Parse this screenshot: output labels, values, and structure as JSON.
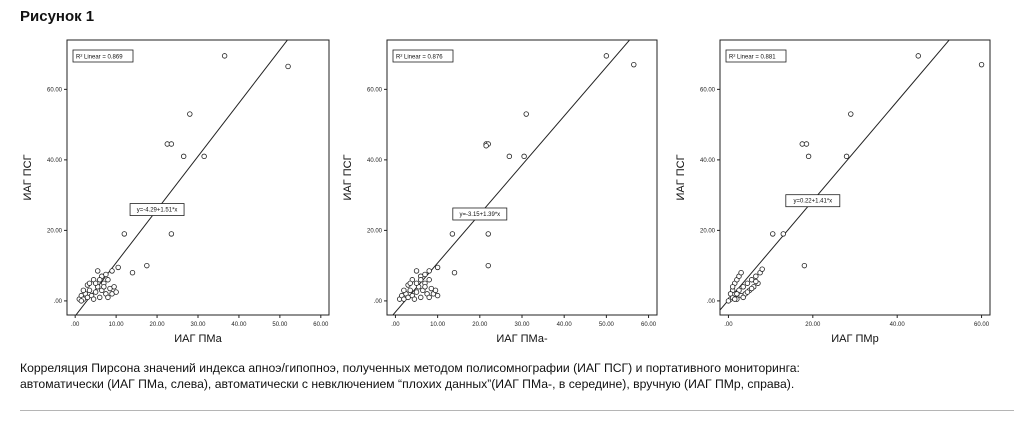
{
  "figure_title": "Рисунок 1",
  "caption_lines": [
    "Корреляция Пирсона значений индекса апноэ/гипопноэ, полученных методом полисомнографии (ИАГ ПСГ) и портативного мониторинга:",
    "автоматически (ИАГ ПМа, слева), автоматически с невключением “плохих данных”(ИАГ ПМа-, в середине), вручную (ИАГ ПМр, справа)."
  ],
  "colors": {
    "axis": "#222222",
    "point": "#222222",
    "line": "#222222"
  },
  "chart_data": [
    {
      "type": "scatter",
      "xlabel": "ИАГ ПМа",
      "ylabel": "ИАГ ПСГ",
      "r2_label": "R² Linear = 0.869",
      "equation": "y=-4.29+1.51*x",
      "intercept": -4.29,
      "slope": 1.51,
      "xlim": [
        -2,
        62
      ],
      "ylim": [
        -4,
        74
      ],
      "x_ticks": [
        ".00",
        "10.00",
        "20.00",
        "30.00",
        "40.00",
        "50.00",
        "60.00"
      ],
      "y_ticks": [
        ".00",
        "20.00",
        "40.00",
        "60.00"
      ],
      "points": [
        [
          36.5,
          69.5
        ],
        [
          52,
          66.5
        ],
        [
          28,
          53
        ],
        [
          22.5,
          44.5
        ],
        [
          23.5,
          44.5
        ],
        [
          31.5,
          41
        ],
        [
          26.5,
          41
        ],
        [
          12,
          19
        ],
        [
          23.5,
          19
        ],
        [
          17.5,
          10
        ],
        [
          10.5,
          9.5
        ],
        [
          14,
          8
        ],
        [
          1,
          0.5
        ],
        [
          1.5,
          1.5
        ],
        [
          2,
          0.5
        ],
        [
          2.5,
          2
        ],
        [
          3,
          1
        ],
        [
          3.5,
          3
        ],
        [
          4,
          1.5
        ],
        [
          4.5,
          0.5
        ],
        [
          5,
          2.5
        ],
        [
          5.5,
          4
        ],
        [
          6,
          1
        ],
        [
          6.5,
          3
        ],
        [
          7,
          5
        ],
        [
          7.5,
          2
        ],
        [
          8,
          6
        ],
        [
          8.5,
          3.5
        ],
        [
          3,
          4.5
        ],
        [
          4.5,
          6
        ],
        [
          5.5,
          8.5
        ],
        [
          6.5,
          7
        ],
        [
          7.5,
          7.5
        ],
        [
          9,
          8.5
        ],
        [
          9,
          2
        ],
        [
          2,
          3
        ],
        [
          3.5,
          5
        ],
        [
          5,
          5
        ],
        [
          6,
          6
        ],
        [
          7,
          4
        ],
        [
          8,
          1
        ],
        [
          9.5,
          4
        ],
        [
          10,
          2.5
        ],
        [
          1.5,
          0
        ]
      ]
    },
    {
      "type": "scatter",
      "xlabel": "ИАГ ПМа-",
      "ylabel": "ИАГ ПСГ",
      "r2_label": "R² Linear = 0.876",
      "equation": "y=-3.15+1.39*x",
      "intercept": -3.15,
      "slope": 1.39,
      "xlim": [
        -2,
        62
      ],
      "ylim": [
        -4,
        74
      ],
      "x_ticks": [
        ".00",
        "10.00",
        "20.00",
        "30.00",
        "40.00",
        "50.00",
        "60.00"
      ],
      "y_ticks": [
        ".00",
        "20.00",
        "40.00",
        "60.00"
      ],
      "points": [
        [
          50,
          69.5
        ],
        [
          56.5,
          67
        ],
        [
          31,
          53
        ],
        [
          21.5,
          44.5
        ],
        [
          22,
          44.5
        ],
        [
          21.5,
          44
        ],
        [
          27,
          41
        ],
        [
          30.5,
          41
        ],
        [
          13.5,
          19
        ],
        [
          22,
          19
        ],
        [
          22,
          10
        ],
        [
          14,
          8
        ],
        [
          10,
          9.5
        ],
        [
          1,
          0.5
        ],
        [
          1.5,
          1.5
        ],
        [
          2,
          0.5
        ],
        [
          2.5,
          2
        ],
        [
          3,
          1
        ],
        [
          3.5,
          3
        ],
        [
          4,
          1.5
        ],
        [
          4.5,
          0.5
        ],
        [
          5,
          2.5
        ],
        [
          5.5,
          4
        ],
        [
          6,
          1
        ],
        [
          6.5,
          3
        ],
        [
          7,
          5
        ],
        [
          7.5,
          2
        ],
        [
          8,
          6
        ],
        [
          8.5,
          3.5
        ],
        [
          3,
          4.5
        ],
        [
          4,
          6
        ],
        [
          5,
          8.5
        ],
        [
          6,
          7
        ],
        [
          7,
          7.5
        ],
        [
          8,
          8.5
        ],
        [
          9,
          2
        ],
        [
          9.5,
          3
        ],
        [
          2,
          3
        ],
        [
          3.5,
          5
        ],
        [
          5,
          5
        ],
        [
          6,
          6
        ],
        [
          7,
          4
        ],
        [
          8,
          1
        ],
        [
          10,
          1.5
        ]
      ]
    },
    {
      "type": "scatter",
      "xlabel": "ИАГ ПМр",
      "ylabel": "ИАГ ПСГ",
      "r2_label": "R² Linear = 0.881",
      "equation": "y=0.22+1.41*x",
      "intercept": 0.22,
      "slope": 1.41,
      "xlim": [
        -2,
        62
      ],
      "ylim": [
        -4,
        74
      ],
      "x_ticks": [
        ".00",
        "20.00",
        "40.00",
        "60.00"
      ],
      "y_ticks": [
        ".00",
        "20.00",
        "40.00",
        "60.00"
      ],
      "points": [
        [
          45,
          69.5
        ],
        [
          60,
          67
        ],
        [
          29,
          53
        ],
        [
          17.5,
          44.5
        ],
        [
          18.5,
          44.5
        ],
        [
          19,
          41
        ],
        [
          28,
          41
        ],
        [
          10.5,
          19
        ],
        [
          13,
          19
        ],
        [
          18,
          10
        ],
        [
          0.5,
          0.5
        ],
        [
          1,
          1
        ],
        [
          1.5,
          2
        ],
        [
          2,
          0.5
        ],
        [
          2.5,
          3
        ],
        [
          3,
          1.5
        ],
        [
          3.5,
          4
        ],
        [
          4,
          2
        ],
        [
          4.5,
          5
        ],
        [
          5,
          3
        ],
        [
          5.5,
          6
        ],
        [
          6,
          4
        ],
        [
          6.5,
          7
        ],
        [
          7,
          5
        ],
        [
          7.5,
          8
        ],
        [
          8,
          9
        ],
        [
          1,
          3
        ],
        [
          1.5,
          5
        ],
        [
          2,
          6
        ],
        [
          2.5,
          7
        ],
        [
          3,
          8
        ],
        [
          0.5,
          2
        ],
        [
          1,
          4
        ],
        [
          2,
          2
        ],
        [
          3.5,
          1
        ],
        [
          4.5,
          2.5
        ],
        [
          5.5,
          3.5
        ],
        [
          6.5,
          5.5
        ],
        [
          0,
          0
        ],
        [
          1.5,
          0.5
        ]
      ]
    }
  ]
}
